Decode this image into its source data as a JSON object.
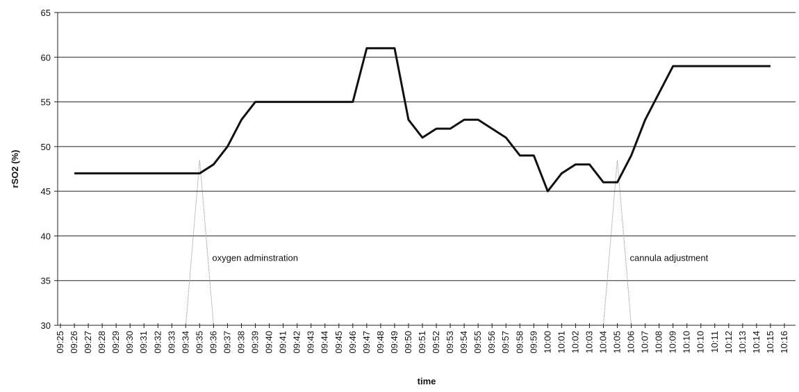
{
  "chart_data": {
    "type": "line",
    "x_label": "time",
    "y_label": "rSO2 (%)",
    "categories": [
      "09:25",
      "09:26",
      "09:27",
      "09:28",
      "09:29",
      "09:30",
      "09:31",
      "09:32",
      "09:33",
      "09:34",
      "09:35",
      "09:36",
      "09:37",
      "09:38",
      "09:39",
      "09:40",
      "09:41",
      "09:42",
      "09:43",
      "09:44",
      "09:45",
      "09:46",
      "09:47",
      "09:48",
      "09:49",
      "09:50",
      "09:51",
      "09:52",
      "09:53",
      "09:54",
      "09:55",
      "09:56",
      "09:57",
      "09:58",
      "09:59",
      "10:00",
      "10:01",
      "10:02",
      "10:03",
      "10:04",
      "10:05",
      "10:06",
      "10:07",
      "10:08",
      "10:09",
      "10:10",
      "10:10",
      "10:11",
      "10:12",
      "10:13",
      "10:14",
      "10:15",
      "10:16"
    ],
    "series": [
      {
        "color": "#111111",
        "values": [
          null,
          47,
          47,
          47,
          47,
          47,
          47,
          47,
          47,
          47,
          47,
          48,
          50,
          53,
          55,
          55,
          55,
          55,
          55,
          55,
          55,
          55,
          61,
          61,
          61,
          53,
          51,
          52,
          52,
          53,
          53,
          52,
          51,
          49,
          49,
          45,
          47,
          48,
          48,
          46,
          46,
          49,
          53,
          56,
          59,
          59,
          59,
          59,
          59,
          59,
          59,
          59,
          null
        ]
      }
    ],
    "ylim": [
      30,
      65
    ],
    "yticks": [
      30,
      35,
      40,
      45,
      50,
      55,
      60,
      65
    ],
    "grid": true,
    "annotations": [
      {
        "text": "oxygen adminstration",
        "category": "09:35"
      },
      {
        "text": "cannula adjustment",
        "category": "10:05"
      }
    ]
  }
}
